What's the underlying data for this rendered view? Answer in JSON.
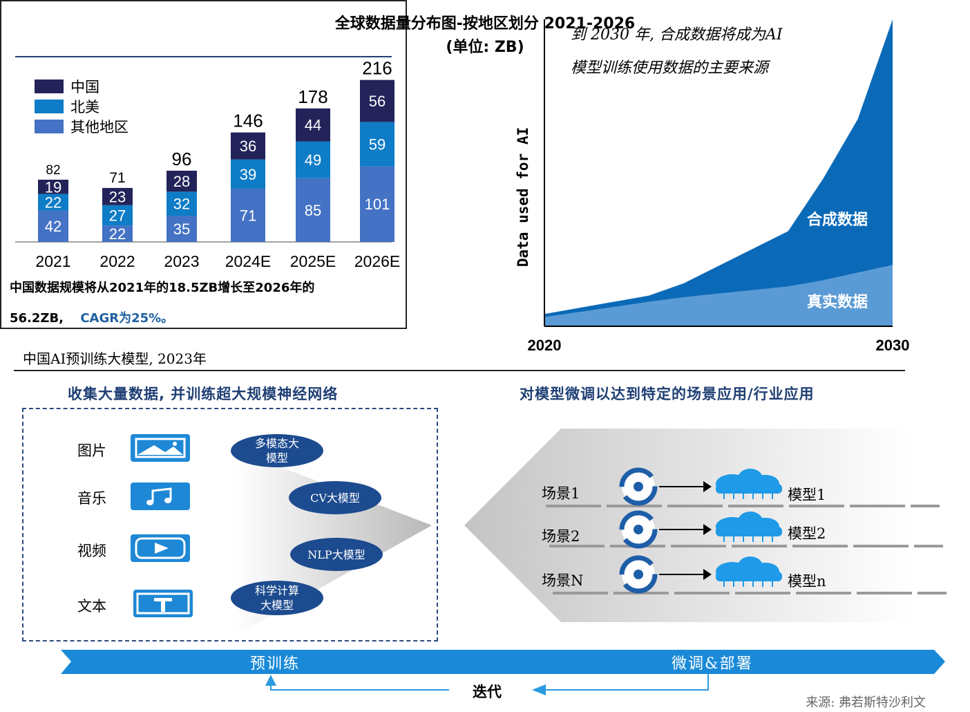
{
  "bar_chart": {
    "title_line1": "全球数据量分布图-按地区划分 2021-2026",
    "title_line2": "(单位: ZB)",
    "note_part1": "中国数据规模将从2021年的18.5ZB增长至2026年的",
    "note_part2": "56.2ZB,",
    "note_highlight": "CAGR为25%。"
  },
  "area_chart": {
    "annotation_line1": "到 2030 年, 合成数据将成为AI",
    "annotation_line2": "模型训练使用数据的主要来源"
  },
  "chart_data": [
    {
      "type": "bar",
      "stacked": true,
      "categories": [
        "2021",
        "2022",
        "2023",
        "2024E",
        "2025E",
        "2026E"
      ],
      "series": [
        {
          "name": "其他地区",
          "values": [
            42,
            22,
            35,
            71,
            85,
            101
          ],
          "color": "#4472c4"
        },
        {
          "name": "北美",
          "values": [
            22,
            27,
            32,
            39,
            49,
            59
          ],
          "color": "#0e7cc6"
        },
        {
          "name": "中国",
          "values": [
            19,
            23,
            28,
            36,
            44,
            56
          ],
          "color": "#23235a"
        }
      ],
      "totals": [
        82,
        71,
        96,
        146,
        178,
        216
      ],
      "legend_position": "top-left"
    },
    {
      "type": "area",
      "stacked": true,
      "ylabel": "Data used for AI",
      "xlabel": "",
      "x_range": [
        2020,
        2030
      ],
      "x_ticks": [
        "2020",
        "2030"
      ],
      "x": [
        2020,
        2023,
        2024,
        2027,
        2028,
        2029,
        2030
      ],
      "series": [
        {
          "name": "真实数据",
          "values": [
            3,
            8,
            9.5,
            13,
            15,
            17.5,
            20
          ],
          "color": "#5b9bd5"
        },
        {
          "name": "合成数据",
          "values": [
            1,
            2,
            4.5,
            18,
            33,
            50,
            80
          ],
          "color": "#0b6ab8"
        }
      ],
      "ylim": [
        0,
        100
      ],
      "grid": false
    }
  ],
  "pretrain": {
    "caption": "中国AI预训练大模型, 2023年",
    "left_title": "收集大量数据, 并训练超大规模神经网络",
    "right_title": "对模型微调以达到特定的场景应用/行业应用",
    "media": [
      {
        "label": "图片",
        "icon": "image-icon"
      },
      {
        "label": "音乐",
        "icon": "music-icon"
      },
      {
        "label": "视频",
        "icon": "video-icon"
      },
      {
        "label": "文本",
        "icon": "text-icon"
      }
    ],
    "models": [
      "多模态大\n模型",
      "CV大模型",
      "NLP大模型",
      "科学计算\n大模型"
    ],
    "scenes": [
      {
        "scene": "场景1",
        "model": "模型1"
      },
      {
        "scene": "场景2",
        "model": "模型2"
      },
      {
        "scene": "场景N",
        "model": "模型n"
      }
    ],
    "stage_left": "预训练",
    "stage_right": "微调&部署",
    "iterate": "迭代",
    "source": "来源: 弗若斯特沙利文"
  }
}
